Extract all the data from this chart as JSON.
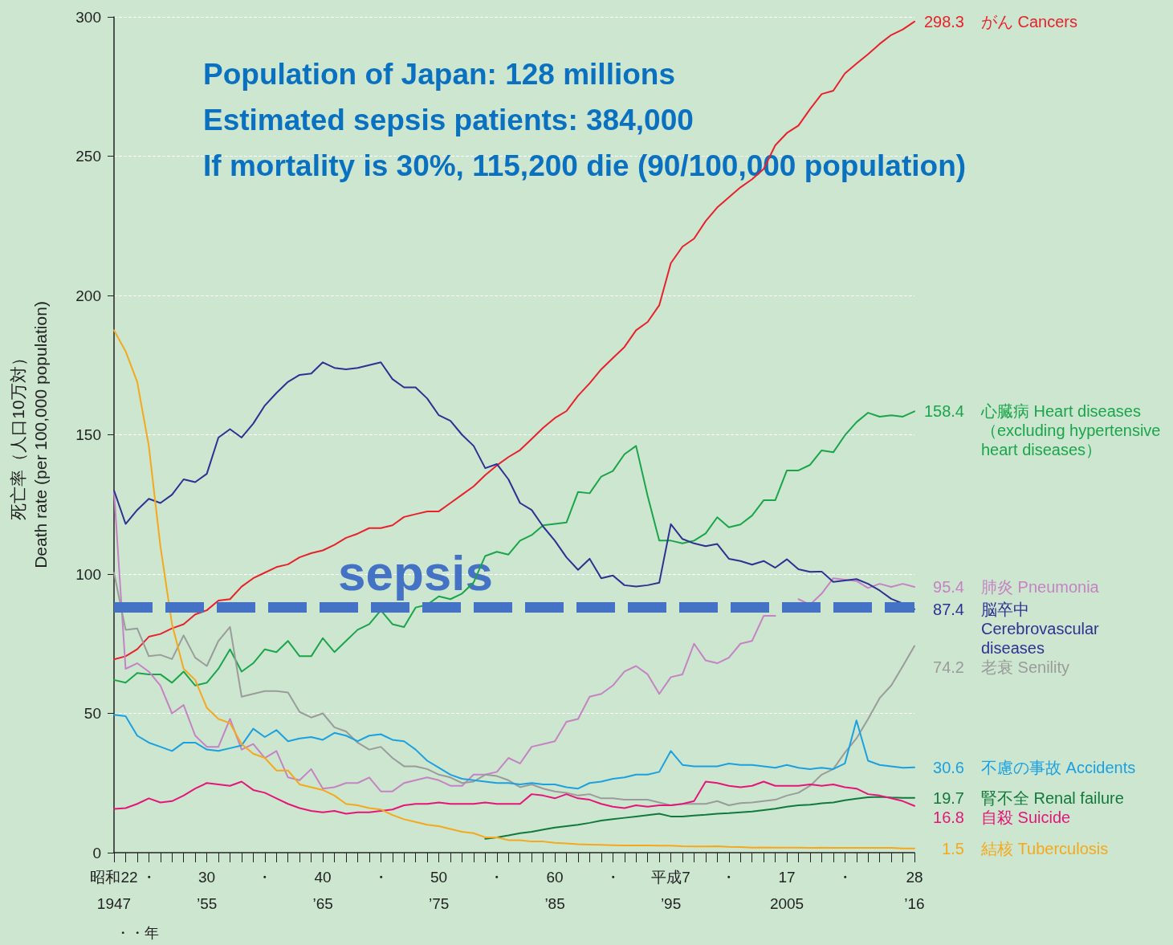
{
  "chart_data": {
    "type": "line",
    "xlabel": "・・年",
    "ylabel": "死亡率（人口10万対）\nDeath rate (per 100,000 population)",
    "categories": [
      "昭和22\n1947",
      null,
      null,
      "・",
      null,
      null,
      null,
      null,
      "30\n’55",
      null,
      null,
      null,
      null,
      "・",
      null,
      null,
      null,
      null,
      "40\n’65",
      null,
      null,
      null,
      null,
      "・",
      null,
      null,
      null,
      null,
      "50\n’75",
      null,
      null,
      null,
      null,
      "・",
      null,
      null,
      null,
      null,
      "60\n’85",
      null,
      null,
      null,
      null,
      "・",
      null,
      null,
      null,
      null,
      "平成7\n’95",
      null,
      null,
      null,
      null,
      "・",
      null,
      null,
      null,
      null,
      "17\n2005",
      null,
      null,
      null,
      null,
      "・",
      null,
      null,
      null,
      null,
      null,
      "28\n’16"
    ],
    "ylim": [
      0,
      300
    ],
    "yticks": [
      0,
      50,
      100,
      150,
      200,
      250,
      300
    ],
    "grid": "y",
    "legend": false,
    "marker": "none",
    "line_style": "solid",
    "series": [
      {
        "name": "がん Cancers",
        "color": "#e8212b",
        "values": [
          69.4,
          70.5,
          73,
          77.5,
          78.5,
          80.5,
          82,
          85.5,
          87,
          90.5,
          91,
          95.5,
          98.5,
          100.5,
          102.5,
          103.5,
          106,
          107.5,
          108.5,
          110.5,
          113,
          114.5,
          116.5,
          116.5,
          117.5,
          120.5,
          121.5,
          122.5,
          122.5,
          125.5,
          128.5,
          131.5,
          135.5,
          139,
          142,
          144.5,
          148.5,
          152.5,
          156,
          158.5,
          164,
          168.5,
          173.5,
          177.5,
          181.5,
          187.5,
          190.5,
          196.5,
          211.6,
          217.5,
          220.4,
          226.7,
          231.6,
          235.2,
          238.8,
          241.7,
          245.4,
          253.9,
          258.3,
          261,
          266.9,
          272.3,
          273.5,
          279.7,
          283.2,
          286.6,
          290.3,
          293.5,
          295.5,
          298.3
        ]
      },
      {
        "name": "心臓病 Heart diseases\n（excluding hypertensive\nheart diseases）",
        "color": "#1aa54a",
        "values": [
          62,
          61,
          64.5,
          64,
          64,
          61,
          65,
          60,
          61,
          66,
          73,
          65,
          68,
          73,
          72,
          76,
          70.5,
          70.5,
          77,
          72,
          76,
          80,
          82,
          87,
          82,
          81,
          88,
          89,
          92,
          91,
          93,
          97,
          106.5,
          108,
          107,
          112,
          114,
          117.5,
          118,
          118.5,
          129.5,
          129,
          135,
          137,
          143,
          146,
          128,
          112,
          112,
          111,
          112,
          114.6,
          120.4,
          116.8,
          117.8,
          121,
          126.5,
          126.5,
          137.2,
          137.2,
          139.2,
          144.4,
          143.7,
          149.8,
          154.5,
          157.9,
          156.5,
          157,
          156.5,
          158.4
        ]
      },
      {
        "name": "肺炎 Pneumonia",
        "color": "#c583c3",
        "values": [
          130,
          66,
          68,
          65,
          60,
          50,
          53,
          42,
          38,
          38,
          48,
          37,
          39,
          34,
          36.5,
          27,
          26,
          30,
          23,
          23.5,
          25,
          25,
          27,
          22,
          22,
          25,
          26,
          27,
          26,
          24,
          24,
          28,
          28,
          29,
          34,
          32,
          38,
          39,
          40,
          47,
          48,
          56,
          57,
          60,
          65,
          67,
          64,
          57,
          63,
          64,
          75,
          69,
          68,
          70,
          75,
          76,
          85,
          85,
          null,
          91,
          89,
          93,
          98.5,
          98,
          97.5,
          95,
          96.5,
          95.4,
          96.5,
          95.4
        ]
      },
      {
        "name": "脳卒中\nCerebrovascular\ndiseases",
        "color": "#2e3092",
        "values": [
          130,
          118,
          123,
          127,
          125.5,
          128.5,
          134,
          133,
          136,
          149,
          152,
          149,
          154,
          160.5,
          165,
          169,
          171.5,
          172,
          176,
          174,
          173.5,
          174,
          175,
          176,
          170,
          167,
          167,
          163,
          157,
          155,
          150,
          146,
          138,
          139.5,
          134,
          125.5,
          123,
          117,
          112,
          106,
          101.5,
          105.5,
          98.5,
          99.5,
          96,
          95.5,
          96,
          96.9,
          117.9,
          112.6,
          111,
          110,
          110.8,
          105.5,
          104.7,
          103.4,
          104.7,
          102.3,
          105.3,
          101.7,
          100.8,
          100.9,
          97.2,
          97.7,
          98.2,
          96.5,
          94.1,
          91.1,
          89.4,
          87.4
        ]
      },
      {
        "name": "老衰 Senility",
        "color": "#9b9b9b",
        "values": [
          100.5,
          80,
          80.5,
          70.5,
          71,
          69.5,
          78,
          70,
          67,
          76,
          81,
          56,
          57,
          58,
          58,
          57.5,
          50.5,
          48.5,
          50,
          45,
          43.5,
          39.5,
          37,
          38,
          34,
          31,
          31,
          30,
          28,
          27,
          25,
          25.5,
          28,
          27.5,
          26,
          23.5,
          24.5,
          23,
          22,
          21.5,
          20.5,
          21,
          19.5,
          19.5,
          19,
          19,
          19,
          18,
          17,
          17.5,
          17.5,
          17.5,
          18.5,
          17,
          17.8,
          18,
          18.5,
          19,
          20.5,
          21.5,
          24,
          28,
          30,
          35.9,
          41,
          48,
          55.5,
          60,
          67,
          74.2
        ]
      },
      {
        "name": "不慮の事故 Accidents",
        "color": "#1ba0e0",
        "values": [
          49.5,
          49,
          42,
          39.5,
          38,
          36.5,
          39.5,
          39.5,
          37,
          36.5,
          37.5,
          38.5,
          44.5,
          41.5,
          44,
          40,
          41,
          41.5,
          40.5,
          43,
          42,
          40,
          42,
          42.5,
          40.5,
          40,
          37,
          33,
          30.5,
          28,
          26.5,
          26,
          25.5,
          25,
          25,
          24.5,
          25,
          24.5,
          24.5,
          23.5,
          23,
          25,
          25.5,
          26.5,
          27,
          28,
          28,
          29,
          36.5,
          31.5,
          31,
          31,
          31,
          32,
          31.5,
          31.5,
          31,
          30.5,
          31.5,
          30.5,
          30,
          30.5,
          30,
          32,
          47.5,
          33,
          31.5,
          31,
          30.5,
          30.6
        ]
      },
      {
        "name": "腎不全 Renal failure",
        "color": "#117a3b",
        "values": [
          null,
          null,
          null,
          null,
          null,
          null,
          null,
          null,
          null,
          null,
          null,
          null,
          null,
          null,
          null,
          null,
          null,
          null,
          null,
          null,
          null,
          null,
          null,
          null,
          null,
          null,
          null,
          null,
          null,
          null,
          null,
          null,
          5,
          5.5,
          6.2,
          7,
          7.5,
          8.3,
          9,
          9.5,
          10,
          10.7,
          11.5,
          12,
          12.5,
          13,
          13.5,
          14,
          13,
          13,
          13.3,
          13.6,
          14,
          14.2,
          14.5,
          14.8,
          15.3,
          15.8,
          16.5,
          17,
          17.2,
          17.7,
          18,
          18.8,
          19.4,
          19.9,
          20,
          19.8,
          19.7,
          19.7
        ]
      },
      {
        "name": "自殺 Suicide",
        "color": "#e5157a",
        "values": [
          15.7,
          16,
          17.5,
          19.5,
          18,
          18.5,
          20.5,
          23,
          25,
          24.5,
          24,
          25.5,
          22.5,
          21.5,
          19.5,
          17.5,
          16,
          15,
          14.5,
          15,
          14,
          14.5,
          14.5,
          15,
          15.5,
          17,
          17.5,
          17.5,
          18,
          17.5,
          17.5,
          17.5,
          18,
          17.5,
          17.5,
          17.5,
          21,
          20.5,
          19.5,
          21,
          19.5,
          19,
          17.5,
          16.5,
          16,
          17,
          16.5,
          17,
          17,
          17.5,
          18.5,
          25.5,
          25,
          24,
          23.5,
          24,
          25.5,
          24,
          24,
          24,
          24.5,
          24,
          24.5,
          23.5,
          23,
          21,
          20.5,
          19.5,
          18.5,
          16.8
        ]
      },
      {
        "name": "結核 Tuberculosis",
        "color": "#f5a81c",
        "values": [
          187.5,
          180,
          169,
          146,
          110,
          82,
          66,
          62,
          52,
          48,
          46.5,
          39,
          35.5,
          34,
          29.5,
          29.5,
          24.5,
          23.5,
          22.5,
          20.5,
          17.5,
          17,
          16,
          15.5,
          13.5,
          12,
          11,
          10,
          9.5,
          8.5,
          7.5,
          7,
          5.5,
          5.5,
          4.5,
          4.5,
          4,
          4,
          3.5,
          3.3,
          3,
          2.9,
          2.8,
          2.7,
          2.6,
          2.6,
          2.6,
          2.5,
          2.5,
          2.3,
          2.2,
          2.2,
          2.3,
          2.1,
          2,
          1.8,
          1.9,
          1.8,
          1.8,
          1.8,
          1.7,
          1.8,
          1.7,
          1.7,
          1.7,
          1.7,
          1.7,
          1.7,
          1.5,
          1.5
        ]
      }
    ],
    "ref_lines": [
      {
        "axis": "y",
        "value": 88,
        "label": "sepsis",
        "color": "#4472c4",
        "line_style": "dashed"
      }
    ],
    "annotations": [
      "Population of Japan: 128 millions",
      "Estimated sepsis patients: 384,000",
      "If mortality is 30%, 115,200 die (90/100,000 population)",
      {
        "text": "298.3",
        "x": "28\n’16",
        "y": 298.3
      },
      {
        "text": "158.4",
        "x": "28\n’16",
        "y": 158.4
      },
      {
        "text": "95.4",
        "x": "28\n’16",
        "y": 95.4
      },
      {
        "text": "87.4",
        "x": "28\n’16",
        "y": 87.4
      },
      {
        "text": "74.2",
        "x": "28\n’16",
        "y": 74.2
      },
      {
        "text": "30.6",
        "x": "28\n’16",
        "y": 30.6
      },
      {
        "text": "19.7",
        "x": "28\n’16",
        "y": 19.7
      },
      {
        "text": "16.8",
        "x": "28\n’16",
        "y": 16.8
      },
      {
        "text": "1.5",
        "x": "28\n’16",
        "y": 1.5
      }
    ]
  }
}
